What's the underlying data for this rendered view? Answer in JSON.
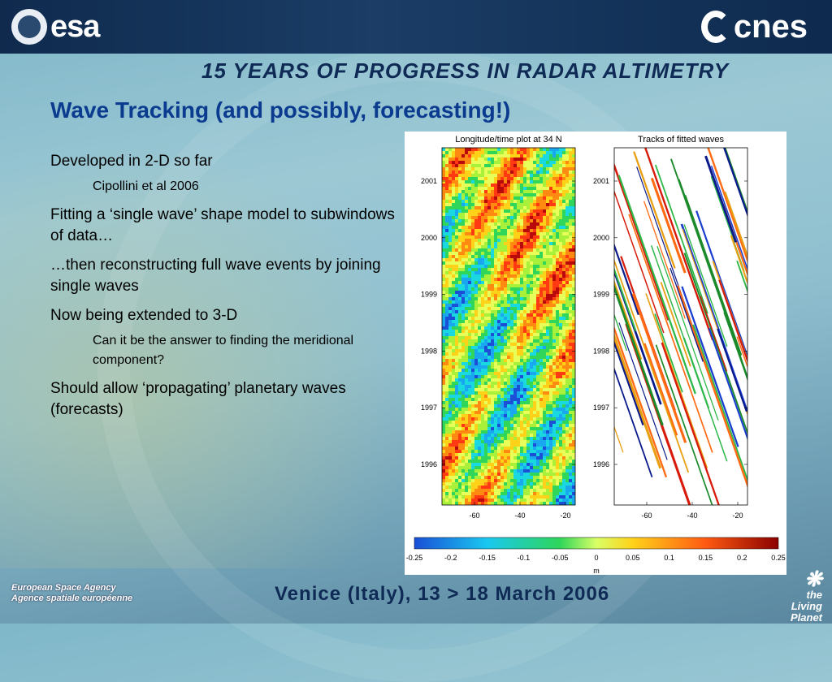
{
  "header": {
    "esa_logo_text": "esa",
    "cnes_logo_text": "cnes",
    "conference_banner": "15 YEARS OF PROGRESS IN RADAR ALTIMETRY"
  },
  "slide": {
    "title": "Wave Tracking (and possibly, forecasting!)",
    "bullets": [
      {
        "text": "Developed in 2-D so far",
        "sub": "Cipollini et al 2006"
      },
      {
        "text": "Fitting a ‘single wave’ shape model to subwindows of data…",
        "sub": ""
      },
      {
        "text": "…then reconstructing full wave events by joining single waves",
        "sub": ""
      },
      {
        "text": "Now being extended to 3-D",
        "sub": "Can it be the answer to finding the meridional component?"
      },
      {
        "text": "Should allow ‘propagating’ planetary waves (forecasts)",
        "sub": ""
      }
    ]
  },
  "figure": {
    "left_panel_title": "Longitude/time plot at 34 N",
    "right_panel_title": "Tracks of fitted waves",
    "y_ticks": [
      "2001",
      "2000",
      "1999",
      "1998",
      "1997",
      "1996"
    ],
    "x_ticks": [
      "-60",
      "-40",
      "-20"
    ],
    "colorbar_ticks": [
      "-0.25",
      "-0.2",
      "-0.15",
      "-0.1",
      "-0.05",
      "0",
      "0.05",
      "0.1",
      "0.15",
      "0.2",
      "0.25"
    ],
    "colorbar_unit": "m"
  },
  "chart_data": [
    {
      "type": "heatmap",
      "title": "Longitude/time plot at 34 N",
      "xlabel": "",
      "ylabel": "",
      "x_ticks": [
        -60,
        -40,
        -20
      ],
      "y_ticks": [
        2001,
        2000,
        1999,
        1998,
        1997,
        1996
      ],
      "colorbar": {
        "min": -0.25,
        "max": 0.25,
        "unit": "m"
      }
    },
    {
      "type": "line",
      "title": "Tracks of fitted waves",
      "xlabel": "",
      "ylabel": "",
      "x_ticks": [
        -60,
        -40,
        -20
      ],
      "y_ticks": [
        2001,
        2000,
        1999,
        1998,
        1997,
        1996
      ]
    }
  ],
  "footer": {
    "agency_line1": "European Space Agency",
    "agency_line2": "Agence spatiale européenne",
    "event": "Venice (Italy), 13 > 18 March 2006",
    "living_planet_line1": "the",
    "living_planet_line2": "Living Planet"
  }
}
